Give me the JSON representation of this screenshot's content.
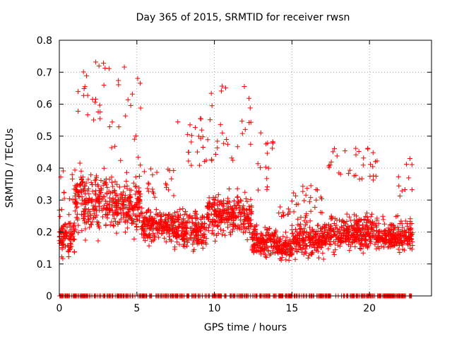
{
  "chart_data": {
    "type": "scatter",
    "title": "Day 365 of 2015, SRMTID for receiver rwsn",
    "xlabel": "GPS time / hours",
    "ylabel": "SRMTID / TECUs",
    "xlim": [
      0,
      24
    ],
    "ylim": [
      0,
      0.8
    ],
    "xticks": [
      "0",
      "5",
      "10",
      "15",
      "20"
    ],
    "yticks": [
      "0",
      "0.1",
      "0.2",
      "0.3",
      "0.4",
      "0.5",
      "0.6",
      "0.7",
      "0.8"
    ],
    "grid": true,
    "marker": "+",
    "series": [
      {
        "name": "SRMTID",
        "color": "#ff0000",
        "segments": [
          {
            "t0": 0.0,
            "t1": 1.0,
            "base": 0.19,
            "spread": 0.1,
            "high": [
              0.3,
              0.42
            ],
            "zero_frac": 0.5
          },
          {
            "t0": 1.0,
            "t1": 3.2,
            "base": 0.3,
            "spread": 0.15,
            "high": [
              0.55,
              0.74
            ],
            "zero_frac": 0.35
          },
          {
            "t0": 3.2,
            "t1": 5.3,
            "base": 0.28,
            "spread": 0.12,
            "high": [
              0.4,
              0.72
            ],
            "zero_frac": 0.35
          },
          {
            "t0": 5.3,
            "t1": 7.4,
            "base": 0.22,
            "spread": 0.08,
            "high": [
              0.3,
              0.4
            ],
            "zero_frac": 0.4
          },
          {
            "t0": 7.4,
            "t1": 9.5,
            "base": 0.21,
            "spread": 0.09,
            "high": [
              0.4,
              0.56
            ],
            "zero_frac": 0.35
          },
          {
            "t0": 9.5,
            "t1": 12.4,
            "base": 0.25,
            "spread": 0.1,
            "high": [
              0.42,
              0.67
            ],
            "zero_frac": 0.35
          },
          {
            "t0": 12.4,
            "t1": 14.0,
            "base": 0.17,
            "spread": 0.08,
            "high": [
              0.3,
              0.53
            ],
            "zero_frac": 0.4
          },
          {
            "t0": 14.0,
            "t1": 15.0,
            "base": 0.15,
            "spread": 0.06,
            "high": [
              0.22,
              0.28
            ],
            "zero_frac": 0.6
          },
          {
            "t0": 15.0,
            "t1": 17.3,
            "base": 0.18,
            "spread": 0.09,
            "high": [
              0.26,
              0.35
            ],
            "zero_frac": 0.35
          },
          {
            "t0": 17.3,
            "t1": 20.5,
            "base": 0.2,
            "spread": 0.09,
            "high": [
              0.36,
              0.47
            ],
            "zero_frac": 0.35
          },
          {
            "t0": 20.5,
            "t1": 21.8,
            "base": 0.18,
            "spread": 0.05,
            "high": [
              0.2,
              0.25
            ],
            "zero_frac": 0.7
          },
          {
            "t0": 21.8,
            "t1": 22.8,
            "base": 0.19,
            "spread": 0.08,
            "high": [
              0.3,
              0.43
            ],
            "zero_frac": 0.4
          }
        ]
      }
    ]
  }
}
